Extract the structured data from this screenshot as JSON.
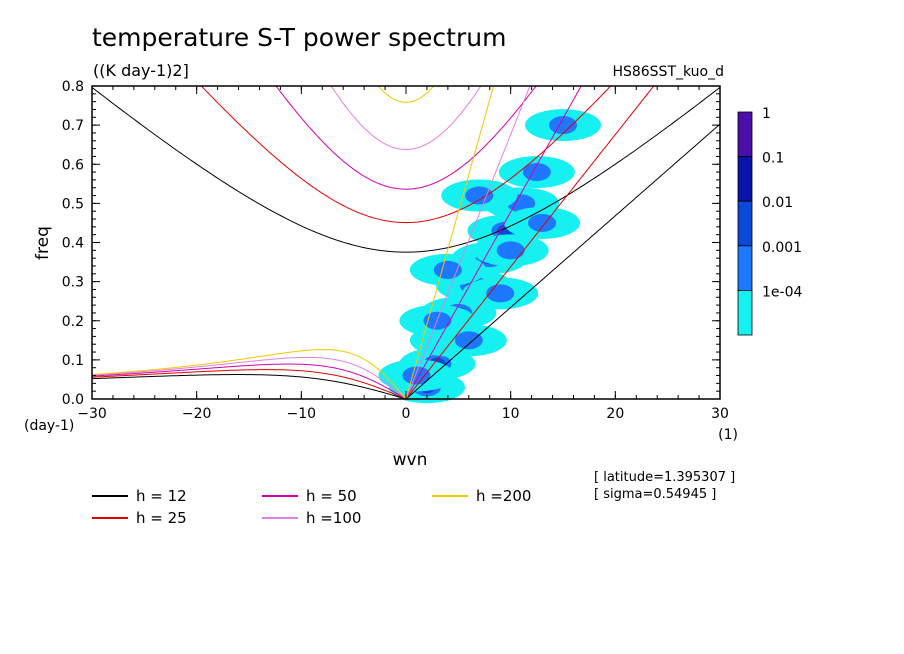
{
  "chart_data": {
    "type": "heatmap",
    "title": "temperature S-T power spectrum",
    "units": "((K day-1)2]",
    "run_name": "HS86SST_kuo_d",
    "xlabel": "wvn",
    "ylabel": "freq",
    "x_unit": "(1)",
    "y_unit": "(day-1)",
    "xlim": [
      -30,
      30
    ],
    "ylim": [
      0,
      0.8
    ],
    "x_ticks": [
      "-30",
      "-20",
      "-10",
      "0",
      "10",
      "20",
      "30"
    ],
    "y_ticks": [
      "0.0",
      "0.1",
      "0.2",
      "0.3",
      "0.4",
      "0.5",
      "0.6",
      "0.7",
      "0.8"
    ],
    "colorbar": {
      "labels": [
        "1",
        "0.1",
        "0.01",
        "0.001",
        "1e-04"
      ],
      "colors": [
        "#4a0fa8",
        "#0a14a8",
        "#0b4ad8",
        "#1e78ff",
        "#16f0f0"
      ]
    },
    "contour_blobs": [
      {
        "x": 2,
        "y": 0.03,
        "level": 2
      },
      {
        "x": 3,
        "y": 0.09,
        "level": 2
      },
      {
        "x": 4,
        "y": 0.15,
        "level": 2
      },
      {
        "x": 5,
        "y": 0.22,
        "level": 3
      },
      {
        "x": 6.5,
        "y": 0.29,
        "level": 2
      },
      {
        "x": 8,
        "y": 0.36,
        "level": 2
      },
      {
        "x": 9.5,
        "y": 0.43,
        "level": 2
      },
      {
        "x": 11,
        "y": 0.5,
        "level": 1
      },
      {
        "x": 12.5,
        "y": 0.58,
        "level": 1
      },
      {
        "x": 1,
        "y": 0.06,
        "level": 1
      },
      {
        "x": 3,
        "y": 0.2,
        "level": 1
      },
      {
        "x": 6,
        "y": 0.15,
        "level": 1
      },
      {
        "x": 9,
        "y": 0.27,
        "level": 1
      },
      {
        "x": 13,
        "y": 0.45,
        "level": 1
      },
      {
        "x": 15,
        "y": 0.7,
        "level": 1
      },
      {
        "x": 10,
        "y": 0.38,
        "level": 1
      },
      {
        "x": 4,
        "y": 0.33,
        "level": 1
      },
      {
        "x": 7,
        "y": 0.52,
        "level": 1
      }
    ],
    "legend": [
      {
        "label": "h = 12",
        "color": "#000000"
      },
      {
        "label": "h = 25",
        "color": "#e00000"
      },
      {
        "label": "h = 50",
        "color": "#d000b0"
      },
      {
        "label": "h =100",
        "color": "#e080e0"
      },
      {
        "label": "h =200",
        "color": "#f0c800"
      }
    ],
    "annotations": [
      "[ latitude=1.395307 ]",
      "[ sigma=0.54945 ]"
    ],
    "grid": false
  }
}
